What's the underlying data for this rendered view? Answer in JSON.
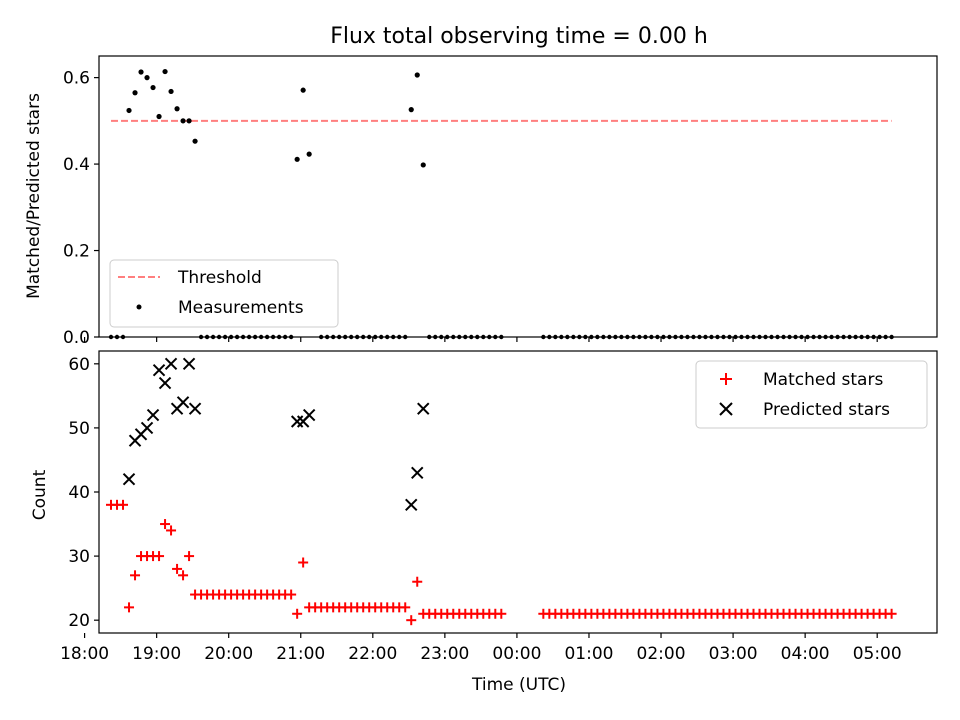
{
  "chart_data": [
    {
      "type": "scatter",
      "title": "Flux total observing time = 0.00 h",
      "ylabel": "Matched/Predicted stars",
      "xlabel": "",
      "ylim": [
        0.0,
        0.65
      ],
      "xlim": [
        18.2,
        5.83
      ],
      "yticks": [
        0.0,
        0.2,
        0.4,
        0.6
      ],
      "ytick_labels": [
        "0.0",
        "0.2",
        "0.4",
        "0.6"
      ],
      "legend_position": "bottom-left",
      "grid": false,
      "series": [
        {
          "name": "Threshold",
          "kind": "line",
          "style": "dashed",
          "color": "#ff7f7f",
          "x": [
            "18:22",
            "05:12"
          ],
          "y": [
            0.5,
            0.5
          ]
        },
        {
          "name": "Measurements",
          "kind": "scatter",
          "color": "#000000",
          "points": [
            [
              "18:37",
              0.524
            ],
            [
              "18:42",
              0.565
            ],
            [
              "18:47",
              0.613
            ],
            [
              "18:52",
              0.6
            ],
            [
              "18:57",
              0.577
            ],
            [
              "19:02",
              0.51
            ],
            [
              "19:07",
              0.614
            ],
            [
              "19:12",
              0.568
            ],
            [
              "19:17",
              0.528
            ],
            [
              "19:22",
              0.5
            ],
            [
              "19:27",
              0.5
            ],
            [
              "19:32",
              0.453
            ],
            [
              "20:57",
              0.411
            ],
            [
              "21:02",
              0.571
            ],
            [
              "21:07",
              0.423
            ],
            [
              "22:32",
              0.526
            ],
            [
              "22:37",
              0.606
            ],
            [
              "22:42",
              0.398
            ]
          ],
          "zero_points": {
            "value": 0.0,
            "ranges": [
              [
                "18:22",
                "18:32"
              ],
              [
                "19:37",
                "20:52"
              ],
              [
                "21:17",
                "22:27"
              ],
              [
                "22:47",
                "23:47"
              ],
              [
                "00:22",
                "05:12"
              ]
            ],
            "interval_minutes": 5
          }
        }
      ]
    },
    {
      "type": "scatter",
      "title": "",
      "xlabel": "Time (UTC)",
      "ylabel": "Count",
      "ylim": [
        18,
        62
      ],
      "yticks": [
        20,
        30,
        40,
        50,
        60
      ],
      "ytick_labels": [
        "20",
        "30",
        "40",
        "50",
        "60"
      ],
      "xticks": [
        "18:00",
        "19:00",
        "20:00",
        "21:00",
        "22:00",
        "23:00",
        "00:00",
        "01:00",
        "02:00",
        "03:00",
        "04:00",
        "05:00"
      ],
      "legend_position": "top-right",
      "grid": false,
      "series": [
        {
          "name": "Matched stars",
          "kind": "scatter",
          "marker": "plus",
          "color": "#ff0000",
          "points": [
            [
              "18:22",
              38
            ],
            [
              "18:27",
              38
            ],
            [
              "18:32",
              38
            ],
            [
              "18:37",
              22
            ],
            [
              "18:42",
              27
            ],
            [
              "18:47",
              30
            ],
            [
              "18:52",
              30
            ],
            [
              "18:57",
              30
            ],
            [
              "19:02",
              30
            ],
            [
              "19:07",
              35
            ],
            [
              "19:12",
              34
            ],
            [
              "19:17",
              28
            ],
            [
              "19:22",
              27
            ],
            [
              "19:27",
              30
            ],
            [
              "20:57",
              21
            ],
            [
              "21:02",
              29
            ],
            [
              "22:32",
              20
            ],
            [
              "22:37",
              26
            ]
          ],
          "constant_runs": [
            {
              "from": "19:32",
              "to": "20:52",
              "value": 24
            },
            {
              "from": "21:07",
              "to": "22:27",
              "value": 22
            },
            {
              "from": "22:42",
              "to": "23:47",
              "value": 21
            },
            {
              "from": "00:22",
              "to": "05:12",
              "value": 21
            }
          ],
          "interval_minutes": 5
        },
        {
          "name": "Predicted stars",
          "kind": "scatter",
          "marker": "x",
          "color": "#000000",
          "points": [
            [
              "18:37",
              42
            ],
            [
              "18:42",
              48
            ],
            [
              "18:47",
              49
            ],
            [
              "18:52",
              50
            ],
            [
              "18:57",
              52
            ],
            [
              "19:02",
              59
            ],
            [
              "19:07",
              57
            ],
            [
              "19:12",
              60
            ],
            [
              "19:17",
              53
            ],
            [
              "19:22",
              54
            ],
            [
              "19:27",
              60
            ],
            [
              "19:32",
              53
            ],
            [
              "20:57",
              51
            ],
            [
              "21:02",
              51
            ],
            [
              "21:07",
              52
            ],
            [
              "22:32",
              38
            ],
            [
              "22:37",
              43
            ],
            [
              "22:42",
              53
            ]
          ]
        }
      ]
    }
  ]
}
